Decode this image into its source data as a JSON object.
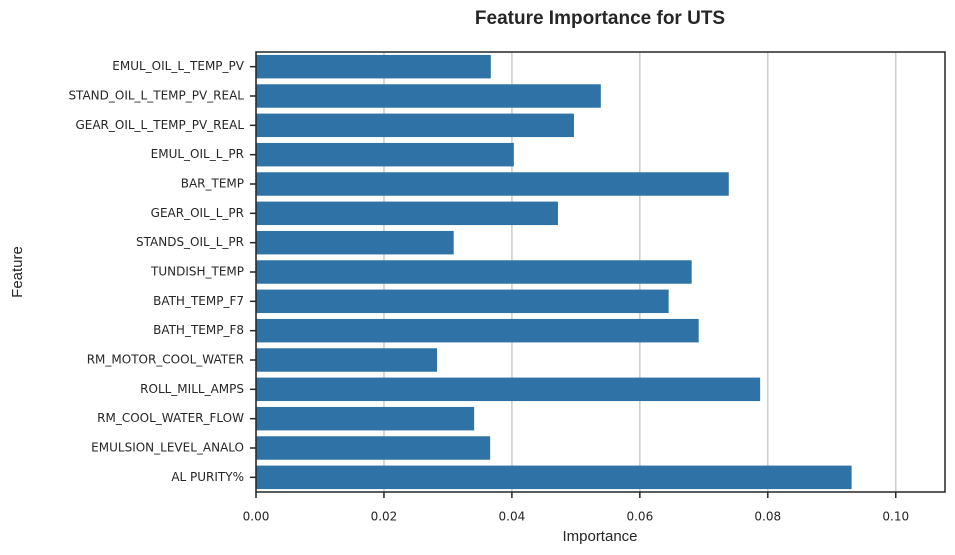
{
  "chart_data": {
    "type": "bar",
    "orientation": "horizontal",
    "title": "Feature Importance for UTS",
    "x_label": "Importance",
    "y_label": "Feature",
    "categories": [
      "EMUL_OIL_L_TEMP_PV",
      "STAND_OIL_L_TEMP_PV_REAL",
      "GEAR_OIL_L_TEMP_PV_REAL",
      "EMUL_OIL_L_PR",
      "BAR_TEMP",
      "GEAR_OIL_L_PR",
      "STANDS_OIL_L_PR",
      "TUNDISH_TEMP",
      "BATH_TEMP_F7",
      "BATH_TEMP_F8",
      "RM_MOTOR_COOL_WATER",
      "ROLL_MILL_AMPS",
      "RM_COOL_WATER_FLOW",
      "EMULSION_LEVEL_ANALO",
      "AL PURITY%"
    ],
    "values": [
      0.0367,
      0.0539,
      0.0497,
      0.0403,
      0.0739,
      0.0472,
      0.0309,
      0.0681,
      0.0645,
      0.0692,
      0.0283,
      0.0788,
      0.0341,
      0.0366,
      0.0931
    ],
    "color": "#2e72a6",
    "xlim": [
      0,
      0.1077
    ],
    "xticks": [
      {
        "value": 0,
        "label": "0.00"
      },
      {
        "value": 0.02,
        "label": "0.02"
      },
      {
        "value": 0.04,
        "label": "0.04"
      },
      {
        "value": 0.06,
        "label": "0.06"
      },
      {
        "value": 0.08,
        "label": "0.08"
      },
      {
        "value": 0.1,
        "label": "0.10"
      }
    ],
    "grid": true
  }
}
